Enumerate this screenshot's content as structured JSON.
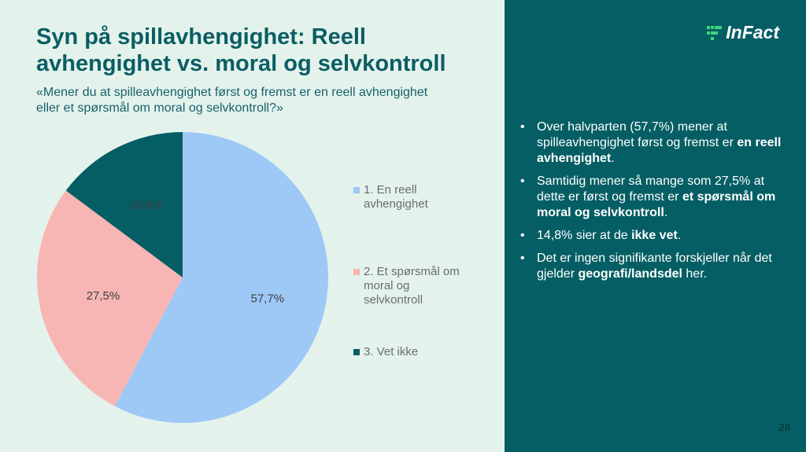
{
  "title": "Syn på spillavhengighet: Reell avhengighet vs. moral og selvkontroll",
  "subtitle_lines": [
    "«Mener du at spilleavhengighet først og fremst er en reell avhengighet",
    "eller et spørsmål om moral og selvkontroll?»"
  ],
  "chart_data": {
    "type": "pie",
    "categories": [
      "1. En reell avhengighet",
      "2. Et spørsmål om moral og selvkontroll",
      "3. Vet ikke"
    ],
    "values": [
      57.7,
      27.5,
      14.8
    ],
    "data_labels": [
      "57,7%",
      "27,5%",
      "14,8%"
    ],
    "colors": [
      "#9ec8f6",
      "#f7b5b3",
      "#055e63"
    ],
    "legend_position": "right",
    "start": "top",
    "direction": "clockwise"
  },
  "legend": {
    "items": [
      {
        "label_lines": [
          "1. En reell",
          "avhengighet"
        ],
        "color": "#9ec8f6"
      },
      {
        "label_lines": [
          "2. Et spørsmål om",
          "moral og",
          "selvkontroll"
        ],
        "color": "#f7b5b3"
      },
      {
        "label_lines": [
          "3. Vet ikke"
        ],
        "color": "#055e63"
      }
    ]
  },
  "logo": {
    "text": "InFact",
    "icon": "infact-logo-icon"
  },
  "bullets": [
    {
      "parts": [
        {
          "text": "Over halvparten (57,7%) mener at spilleavhengighet først og fremst er ",
          "bold": false
        },
        {
          "text": "en reell avhengighet",
          "bold": true
        },
        {
          "text": ".",
          "bold": false
        }
      ]
    },
    {
      "parts": [
        {
          "text": "Samtidig mener så mange som 27,5% at dette er først og fremst er ",
          "bold": false
        },
        {
          "text": "et spørsmål om moral og selvkontroll",
          "bold": true
        },
        {
          "text": ".",
          "bold": false
        }
      ]
    },
    {
      "parts": [
        {
          "text": "14,8% sier at de ",
          "bold": false
        },
        {
          "text": "ikke vet",
          "bold": true
        },
        {
          "text": ".",
          "bold": false
        }
      ]
    },
    {
      "parts": [
        {
          "text": "Det er ingen signifikante forskjeller når det gjelder ",
          "bold": false
        },
        {
          "text": "geografi/landsdel",
          "bold": true
        },
        {
          "text": " her.",
          "bold": false
        }
      ]
    }
  ],
  "bullet_symbol": "•",
  "page_number": "28"
}
